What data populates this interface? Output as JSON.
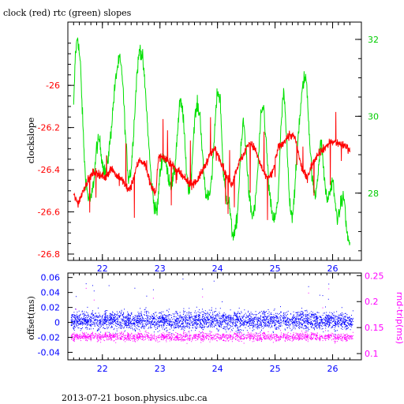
{
  "title": "clock (red) rtc (green) slopes",
  "footer": "2013-07-21 boson.physics.ubc.ca",
  "colors": {
    "clock": "#ff0000",
    "rtc": "#00e000",
    "offset": "#0000ff",
    "rndtrip": "#ff00ff",
    "axis": "#000000"
  },
  "chart_data": [
    {
      "type": "line",
      "title": "clock (red) rtc (green) slopes",
      "xlabel": "",
      "ylabel": "clockslope",
      "xlim": [
        21.4,
        26.5
      ],
      "ylim": [
        -26.83,
        -25.7
      ],
      "y2lim": [
        26.25,
        32.45
      ],
      "xticks": [
        "22",
        "23",
        "24",
        "25",
        "26"
      ],
      "yticks": [
        "-26",
        "-26.2",
        "-26.4",
        "-26.6",
        "-26.8"
      ],
      "y2ticks": [
        "32",
        "30",
        "28"
      ],
      "series": [
        {
          "name": "clock",
          "axis": "left",
          "x": [
            21.5,
            21.58,
            21.66,
            21.75,
            21.85,
            21.95,
            22.05,
            22.15,
            22.25,
            22.35,
            22.45,
            22.5,
            22.58,
            22.65,
            22.75,
            22.85,
            22.93,
            22.97,
            23.05,
            23.15,
            23.25,
            23.35,
            23.45,
            23.55,
            23.65,
            23.75,
            23.85,
            23.95,
            24.05,
            24.15,
            24.25,
            24.35,
            24.45,
            24.55,
            24.65,
            24.75,
            24.85,
            24.95,
            25.05,
            25.15,
            25.25,
            25.35,
            25.45,
            25.55,
            25.65,
            25.75,
            25.85,
            25.95,
            26.05,
            26.15,
            26.25,
            26.3
          ],
          "values": [
            -26.52,
            -26.56,
            -26.5,
            -26.45,
            -26.41,
            -26.42,
            -26.44,
            -26.39,
            -26.43,
            -26.45,
            -26.5,
            -26.48,
            -26.4,
            -26.35,
            -26.38,
            -26.48,
            -26.52,
            -26.34,
            -26.34,
            -26.36,
            -26.39,
            -26.42,
            -26.45,
            -26.47,
            -26.45,
            -26.4,
            -26.34,
            -26.3,
            -26.35,
            -26.43,
            -26.47,
            -26.38,
            -26.33,
            -26.27,
            -26.3,
            -26.38,
            -26.44,
            -26.42,
            -26.3,
            -26.27,
            -26.23,
            -26.25,
            -26.38,
            -26.44,
            -26.37,
            -26.32,
            -26.3,
            -26.27,
            -26.27,
            -26.28,
            -26.29,
            -26.31
          ]
        },
        {
          "name": "rtc",
          "axis": "right",
          "x": [
            21.5,
            21.53,
            21.57,
            21.62,
            21.66,
            21.7,
            21.75,
            21.8,
            21.85,
            21.9,
            21.95,
            22.0,
            22.05,
            22.1,
            22.15,
            22.2,
            22.25,
            22.3,
            22.35,
            22.4,
            22.45,
            22.5,
            22.55,
            22.6,
            22.65,
            22.7,
            22.75,
            22.8,
            22.85,
            22.9,
            22.95,
            23.0,
            23.05,
            23.1,
            23.15,
            23.2,
            23.25,
            23.3,
            23.35,
            23.4,
            23.45,
            23.5,
            23.55,
            23.6,
            23.65,
            23.7,
            23.75,
            23.8,
            23.85,
            23.9,
            23.95,
            24.0,
            24.05,
            24.1,
            24.15,
            24.2,
            24.25,
            24.3,
            24.35,
            24.4,
            24.45,
            24.5,
            24.55,
            24.6,
            24.65,
            24.7,
            24.75,
            24.8,
            24.85,
            24.9,
            24.95,
            25.0,
            25.05,
            25.1,
            25.15,
            25.2,
            25.25,
            25.3,
            25.35,
            25.4,
            25.45,
            25.5,
            25.55,
            25.6,
            25.65,
            25.7,
            25.75,
            25.8,
            25.85,
            25.9,
            25.95,
            26.0,
            26.05,
            26.1,
            26.15,
            26.2,
            26.25,
            26.3
          ],
          "values": [
            30.2,
            31.6,
            32.1,
            31.3,
            29.8,
            28.5,
            27.9,
            27.8,
            28.3,
            29.2,
            29.4,
            28.8,
            28.5,
            28.9,
            29.6,
            30.5,
            31.2,
            31.5,
            31.0,
            29.5,
            28.4,
            28.6,
            29.8,
            31.1,
            31.8,
            31.5,
            30.6,
            29.4,
            28.3,
            27.7,
            27.5,
            28.5,
            29.0,
            28.8,
            28.4,
            28.2,
            28.5,
            29.5,
            30.4,
            30.1,
            28.8,
            28.0,
            28.6,
            29.9,
            30.3,
            30.0,
            28.7,
            27.9,
            28.0,
            28.3,
            29.6,
            30.7,
            30.4,
            28.5,
            27.9,
            27.8,
            27.0,
            26.9,
            27.5,
            29.0,
            29.9,
            29.1,
            27.9,
            27.4,
            27.6,
            28.6,
            29.9,
            30.3,
            29.2,
            28.0,
            27.4,
            27.3,
            27.8,
            29.6,
            30.7,
            29.4,
            27.8,
            27.4,
            28.2,
            29.5,
            30.3,
            31.0,
            30.9,
            29.4,
            28.3,
            27.9,
            28.6,
            29.4,
            28.5,
            27.8,
            28.0,
            28.4,
            27.6,
            27.3,
            27.8,
            27.9,
            26.9,
            26.7
          ]
        }
      ]
    },
    {
      "type": "scatter",
      "xlabel": "",
      "ylabel": "offset(ms)",
      "y2label": "rnd-trip(ms)",
      "xlim": [
        21.4,
        26.5
      ],
      "ylim": [
        -0.05,
        0.066
      ],
      "y2lim": [
        0.088,
        0.255
      ],
      "xticks": [
        "22",
        "23",
        "24",
        "25",
        "26"
      ],
      "yticks": [
        "0.06",
        "0.04",
        "0.02",
        "0",
        "-0.02",
        "-0.04"
      ],
      "y2ticks": [
        "0.25",
        "0.2",
        "0.15",
        "0.1"
      ],
      "series": [
        {
          "name": "offset",
          "axis": "left",
          "x_range": [
            21.45,
            26.35
          ],
          "center": 0.003,
          "spread": 0.021,
          "outlier_range": [
            0.02,
            0.06
          ]
        },
        {
          "name": "rnd-trip",
          "axis": "right",
          "x_range": [
            21.45,
            26.35
          ],
          "center": 0.133,
          "spread": 0.014,
          "outlier_range": [
            0.15,
            0.245
          ]
        }
      ]
    }
  ]
}
